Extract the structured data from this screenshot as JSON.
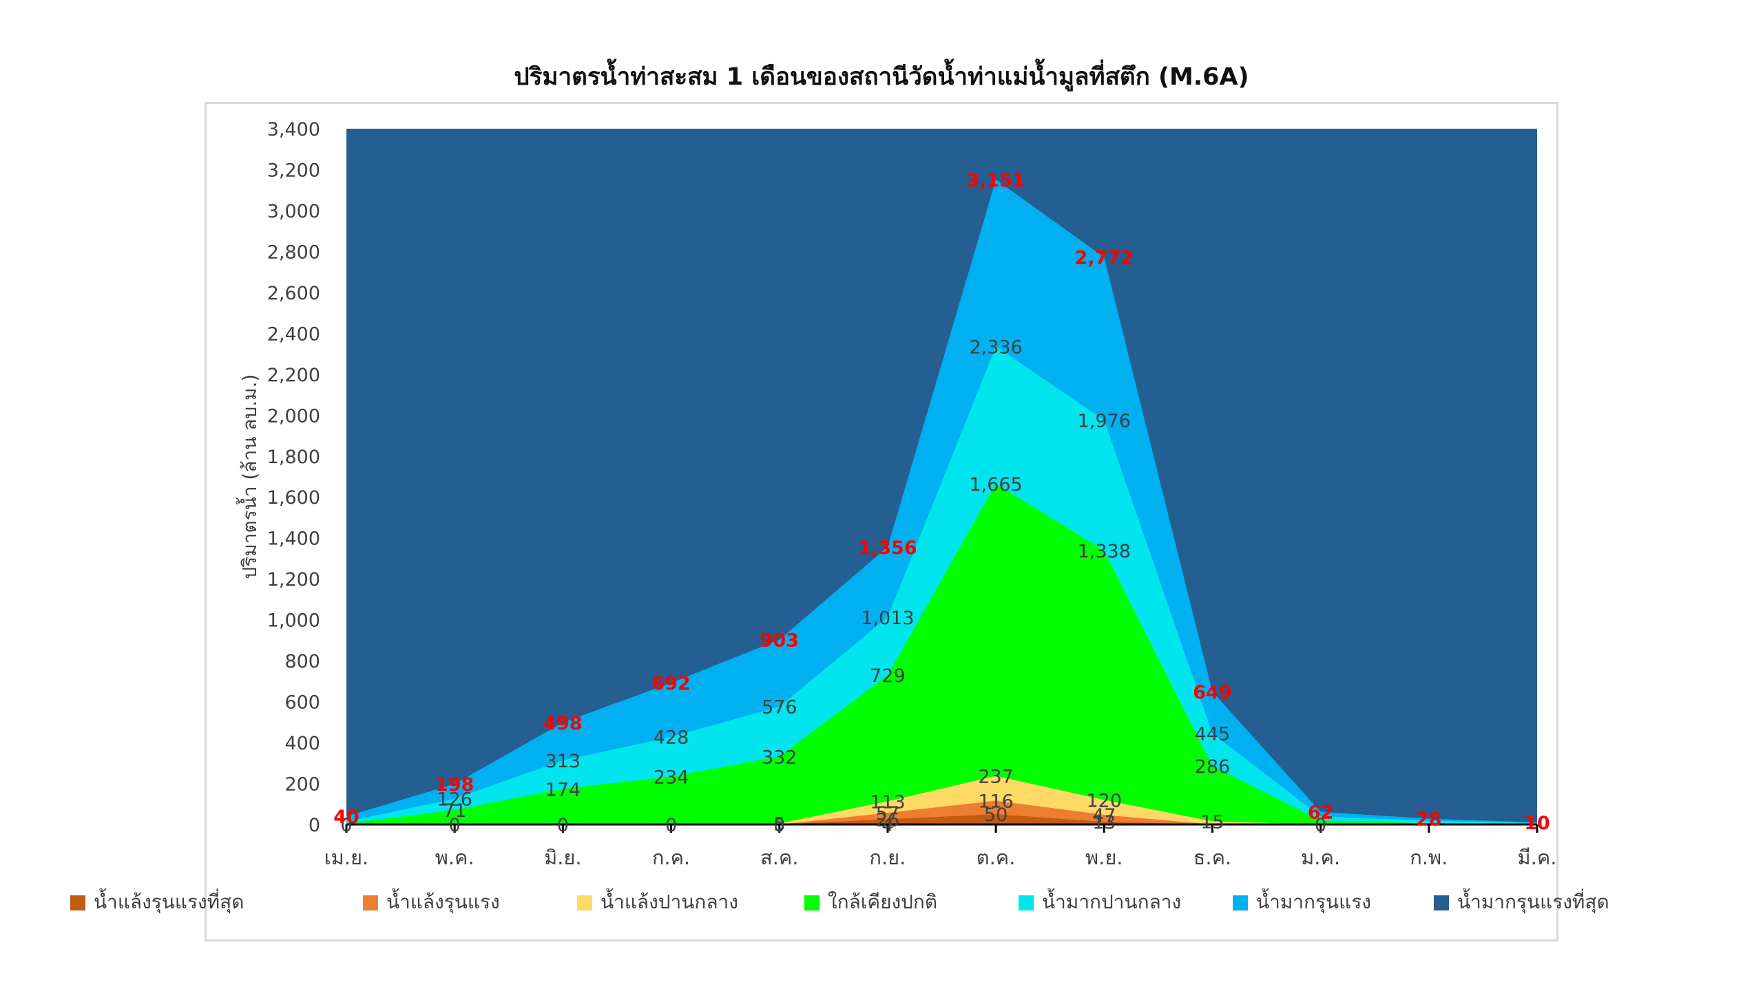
{
  "chart_data": {
    "type": "area",
    "title": "ปริมาตรน้ำท่าสะสม 1 เดือนของสถานีวัดน้ำท่าแม่น้ำมูลที่สตึก (M.6A)",
    "xlabel": "",
    "ylabel": "ปริมาตรน้ำ (ล้าน ลบ.ม.)",
    "ylim": [
      0,
      3400
    ],
    "yticks": [
      0,
      200,
      400,
      600,
      800,
      1000,
      1200,
      1400,
      1600,
      1800,
      2000,
      2200,
      2400,
      2600,
      2800,
      3000,
      3200,
      3400
    ],
    "yticks_labels": [
      "0",
      "200",
      "400",
      "600",
      "800",
      "1,000",
      "1,200",
      "1,400",
      "1,600",
      "1,800",
      "2,000",
      "2,200",
      "2,400",
      "2,600",
      "2,800",
      "3,000",
      "3,200",
      "3,400"
    ],
    "categories": [
      "เม.ย.",
      "พ.ค.",
      "มิ.ย.",
      "ก.ค.",
      "ส.ค.",
      "ก.ย.",
      "ต.ค.",
      "พ.ย.",
      "ธ.ค.",
      "ม.ค.",
      "ก.พ.",
      "มี.ค."
    ],
    "grid": false,
    "legend": "bottom",
    "series": [
      {
        "name": "น้ำแล้งรุนแรงที่สุด",
        "color": "#c55a11",
        "values": [
          0,
          0,
          0,
          0,
          0,
          26,
          50,
          13,
          0,
          0,
          0,
          0
        ],
        "labels": [
          "",
          "",
          "",
          "",
          "",
          "26",
          "50",
          "13",
          "",
          "",
          "",
          ""
        ],
        "label_color": "#404040"
      },
      {
        "name": "น้ำแล้งรุนแรง",
        "color": "#ed7d31",
        "values": [
          0,
          0,
          0,
          0,
          0,
          57,
          116,
          47,
          0,
          0,
          0,
          0
        ],
        "labels": [
          "",
          "",
          "",
          "",
          "",
          "57",
          "116",
          "47",
          "",
          "",
          "",
          ""
        ],
        "label_color": "#404040"
      },
      {
        "name": "น้ำแล้งปานกลาง",
        "color": "#ffd966",
        "values": [
          0,
          0,
          0,
          0,
          5,
          113,
          237,
          120,
          15,
          0,
          0,
          0
        ],
        "labels": [
          "",
          "",
          "",
          "",
          "5",
          "113",
          "237",
          "120",
          "15",
          "",
          "",
          ""
        ],
        "label_color": "#404040"
      },
      {
        "name": "ใกล้เคียงปกติ",
        "color": "#00ff00",
        "values": [
          4,
          71,
          174,
          234,
          332,
          729,
          1665,
          1338,
          286,
          19,
          6,
          3
        ],
        "labels": [
          "",
          "71",
          "174",
          "234",
          "332",
          "729",
          "1,665",
          "1,338",
          "286",
          "",
          "",
          ""
        ],
        "label_color": "#404040"
      },
      {
        "name": "น้ำมากปานกลาง",
        "color": "#00e5ee",
        "values": [
          14,
          126,
          313,
          428,
          576,
          1013,
          2336,
          1976,
          445,
          40,
          18,
          8
        ],
        "labels": [
          "",
          "126",
          "313",
          "428",
          "576",
          "1,013",
          "2,336",
          "1,976",
          "445",
          "",
          "",
          ""
        ],
        "label_color": "#404040"
      },
      {
        "name": "น้ำมากรุนแรง",
        "color": "#00b0f0",
        "values": [
          40,
          198,
          498,
          692,
          903,
          1356,
          3151,
          2772,
          649,
          62,
          28,
          10
        ],
        "labels": [
          "40",
          "198",
          "498",
          "692",
          "903",
          "1,356",
          "3,151",
          "2,772",
          "649",
          "62",
          "28",
          "10"
        ],
        "label_color": "#ff0000"
      },
      {
        "name": "น้ำมากรุนแรงที่สุด",
        "color": "#255e91",
        "values": [
          3400,
          3400,
          3400,
          3400,
          3400,
          3400,
          3400,
          3400,
          3400,
          3400,
          3400,
          3400
        ],
        "labels": [
          "",
          "",
          "",
          "",
          "",
          "",
          "",
          "",
          "",
          "",
          "",
          ""
        ],
        "label_color": "#404040"
      }
    ],
    "baseline_labels": [
      "0",
      "0",
      "0",
      "0",
      "0",
      "4",
      "",
      "",
      "",
      "0",
      "",
      ""
    ]
  }
}
